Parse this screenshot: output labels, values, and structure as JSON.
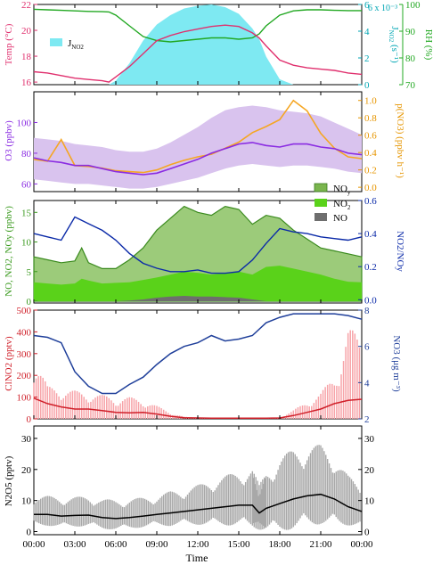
{
  "x_axis": {
    "label": "Time",
    "ticks": [
      "00:00",
      "03:00",
      "06:00",
      "09:00",
      "12:00",
      "15:00",
      "18:00",
      "21:00",
      "00:00"
    ]
  },
  "chart_data": [
    {
      "type": "line",
      "panel": "temperature-rh-jno2",
      "y_left": {
        "label": "Temp (°C)",
        "ticks": [
          "16",
          "18",
          "20",
          "22"
        ],
        "color": "#e0306e",
        "lim": [
          15.8,
          22
        ]
      },
      "y_right_inner": {
        "label": "J",
        "label_sub": "NO2",
        "label_unit": "(s⁻¹)",
        "ticks": [
          "0",
          "2",
          "4",
          "6"
        ],
        "exp": "6 x 10⁻³",
        "color": "#00a6b4",
        "lim": [
          0,
          6
        ]
      },
      "y_right_outer": {
        "label": "RH (%)",
        "ticks": [
          "70",
          "80",
          "90",
          "100"
        ],
        "color": "#22a822",
        "lim": [
          70,
          100
        ]
      },
      "legend": [
        {
          "name": "J",
          "name_sub": "NO2",
          "color": "#7ee9f2"
        }
      ],
      "hours": [
        0,
        1,
        2,
        3,
        4,
        5,
        5.5,
        6,
        7,
        8,
        9,
        10,
        11,
        12,
        13,
        14,
        15,
        16,
        16.5,
        17,
        18,
        19,
        20,
        21,
        22,
        23,
        24
      ],
      "temp": [
        16.8,
        16.7,
        16.5,
        16.3,
        16.2,
        16.1,
        16.0,
        16.4,
        17.2,
        18.2,
        19.2,
        19.6,
        19.9,
        20.1,
        20.3,
        20.4,
        20.3,
        19.8,
        19.4,
        18.8,
        17.7,
        17.3,
        17.1,
        17.0,
        16.9,
        16.7,
        16.6
      ],
      "rh": [
        98.2,
        98.0,
        97.8,
        97.6,
        97.4,
        97.3,
        97.2,
        96,
        92,
        88,
        86.5,
        86,
        86.5,
        87,
        87.5,
        87.5,
        87,
        87.5,
        89,
        92,
        96,
        97.6,
        98,
        98,
        97.8,
        97.7,
        97.7
      ],
      "jno2": [
        0,
        0,
        0,
        0,
        0,
        0,
        0,
        0.3,
        1.6,
        3.3,
        4.5,
        5.2,
        5.7,
        5.9,
        6.0,
        5.8,
        5.3,
        4.2,
        3.4,
        2.1,
        0.4,
        0,
        0,
        0,
        0,
        0,
        0
      ]
    },
    {
      "type": "area",
      "panel": "ozone",
      "y_left": {
        "label": "O3 (ppbv)",
        "ticks": [
          "60",
          "80",
          "100"
        ],
        "color": "#8a2be2",
        "lim": [
          55,
          120
        ]
      },
      "y_right": {
        "label": "p(NO3) (ppbv h⁻¹)",
        "ticks": [
          "0.0",
          "0.2",
          "0.4",
          "0.6",
          "0.8",
          "1.0"
        ],
        "color": "#e69500",
        "lim": [
          -0.05,
          1.1
        ]
      },
      "hours": [
        0,
        1,
        2,
        3,
        4,
        5,
        6,
        7,
        8,
        9,
        10,
        11,
        12,
        13,
        14,
        15,
        16,
        17,
        18,
        19,
        20,
        21,
        22,
        23,
        24
      ],
      "o3": [
        77,
        75,
        74,
        72,
        72,
        70,
        68,
        67,
        66,
        67,
        70,
        73,
        76,
        80,
        83,
        86,
        87,
        85,
        84,
        86,
        86,
        84,
        83,
        80,
        79
      ],
      "o3_low": [
        63,
        62,
        61,
        60,
        60,
        59,
        58,
        57,
        57,
        58,
        60,
        62,
        64,
        67,
        70,
        72,
        73,
        72,
        71,
        72,
        72,
        71,
        70,
        68,
        67
      ],
      "o3_high": [
        90,
        89,
        88,
        86,
        85,
        84,
        82,
        81,
        81,
        83,
        87,
        92,
        97,
        103,
        108,
        110,
        111,
        110,
        108,
        107,
        106,
        104,
        100,
        96,
        92
      ],
      "pno3": [
        0.32,
        0.3,
        0.55,
        0.25,
        0.24,
        0.22,
        0.19,
        0.18,
        0.17,
        0.2,
        0.26,
        0.31,
        0.35,
        0.38,
        0.45,
        0.52,
        0.63,
        0.7,
        0.78,
        1.0,
        0.88,
        0.62,
        0.45,
        0.35,
        0.33
      ]
    },
    {
      "type": "area",
      "panel": "nitrogen-oxides",
      "y_left": {
        "label": "NO, NO2, NOy (ppbv)",
        "ticks": [
          "0",
          "5",
          "10",
          "15"
        ],
        "color": "#3a9a1e",
        "lim": [
          -0.3,
          17
        ]
      },
      "y_right": {
        "label": "NO2/NOy",
        "ticks": [
          "0.0",
          "0.2",
          "0.4",
          "0.6"
        ],
        "color": "#0b2aa8",
        "lim": [
          -0.02,
          0.6
        ]
      },
      "legend": [
        {
          "name": "NO",
          "name_sub": "y",
          "color": "#7ab54d"
        },
        {
          "name": "NO",
          "name_sub": "2",
          "color": "#5ad21a"
        },
        {
          "name": "NO",
          "name_sub": "",
          "color": "#6e6e6e"
        }
      ],
      "hours": [
        0,
        1,
        2,
        3,
        3.5,
        4,
        5,
        6,
        7,
        8,
        9,
        10,
        11,
        12,
        13,
        14,
        15,
        16,
        17,
        18,
        19,
        20,
        21,
        22,
        23,
        24
      ],
      "noy": [
        7.5,
        7.0,
        6.5,
        6.8,
        9.0,
        6.5,
        5.5,
        5.5,
        7.0,
        9.0,
        12.0,
        14.0,
        16.0,
        15.0,
        14.5,
        16.0,
        15.5,
        13.0,
        14.5,
        14.0,
        12.0,
        10.5,
        9.0,
        8.5,
        8.0,
        7.5
      ],
      "no2": [
        3.2,
        3.0,
        2.8,
        3.0,
        3.8,
        3.5,
        3.0,
        3.1,
        3.2,
        3.6,
        4.0,
        4.5,
        5.0,
        4.8,
        4.5,
        4.8,
        5.0,
        4.5,
        5.8,
        6.0,
        5.5,
        5.0,
        4.5,
        3.8,
        3.3,
        3.2
      ],
      "no": [
        0,
        0,
        0,
        0,
        0,
        0,
        0,
        0,
        0.1,
        0.3,
        0.6,
        0.8,
        0.9,
        0.8,
        0.8,
        0.7,
        0.6,
        0.3,
        0,
        0,
        0,
        0,
        0,
        0,
        0,
        0
      ],
      "ratio": [
        0.4,
        0.38,
        0.36,
        0.5,
        0.48,
        0.46,
        0.42,
        0.36,
        0.28,
        0.22,
        0.19,
        0.17,
        0.17,
        0.18,
        0.16,
        0.16,
        0.17,
        0.24,
        0.34,
        0.43,
        0.41,
        0.4,
        0.38,
        0.37,
        0.36,
        0.38
      ]
    },
    {
      "type": "line",
      "panel": "clno2-no3",
      "y_left": {
        "label": "ClNO2 (pptv)",
        "ticks": [
          "0",
          "100",
          "200",
          "300",
          "400",
          "500"
        ],
        "color": "#d0202a",
        "lim": [
          0,
          500
        ]
      },
      "y_right": {
        "label": "NO3 (μg m⁻³)",
        "ticks": [
          "2",
          "4",
          "6",
          "8"
        ],
        "color": "#1f3f9a",
        "lim": [
          2,
          8
        ]
      },
      "hours": [
        0,
        1,
        2,
        3,
        4,
        5,
        6,
        7,
        8,
        9,
        10,
        11,
        12,
        13,
        14,
        15,
        16,
        17,
        18,
        19,
        20,
        21,
        22,
        23,
        24
      ],
      "clno2": [
        95,
        70,
        55,
        45,
        45,
        38,
        30,
        28,
        30,
        22,
        12,
        5,
        4,
        3,
        3,
        3,
        3,
        3,
        4,
        15,
        30,
        45,
        70,
        85,
        90
      ],
      "clno2_spike": [
        300,
        150,
        140,
        130,
        120,
        110,
        100,
        100,
        90,
        60,
        30,
        10,
        5,
        4,
        3,
        3,
        3,
        3,
        8,
        40,
        80,
        120,
        200,
        420,
        380
      ],
      "no3_hours": [
        0,
        1,
        2,
        3,
        4,
        5,
        6,
        7,
        8,
        9,
        10,
        11,
        12,
        13,
        14,
        15,
        16,
        17,
        18,
        19,
        20,
        21,
        22,
        23,
        24
      ],
      "no3": [
        6.6,
        6.5,
        6.2,
        4.6,
        3.8,
        3.4,
        3.4,
        3.9,
        4.3,
        5.0,
        5.6,
        6.0,
        6.2,
        6.6,
        6.3,
        6.4,
        6.6,
        7.3,
        7.6,
        7.8,
        7.8,
        7.8,
        7.8,
        7.7,
        7.5
      ]
    },
    {
      "type": "line",
      "panel": "n2o5",
      "y_left": {
        "label": "N2O5 (pptv)",
        "ticks": [
          "0",
          "10",
          "20",
          "30"
        ],
        "lim": [
          -1,
          34
        ]
      },
      "y_right": {
        "ticks": [
          "0",
          "10",
          "20",
          "30"
        ],
        "lim": [
          -1,
          34
        ]
      },
      "hours": [
        0,
        1,
        2,
        3,
        4,
        5,
        6,
        7,
        8,
        9,
        10,
        11,
        12,
        13,
        14,
        15,
        16,
        16.5,
        17,
        18,
        19,
        20,
        21,
        22,
        23,
        24
      ],
      "n2o5": [
        5.5,
        5.5,
        5.0,
        5.2,
        5.3,
        4.5,
        4.2,
        4.5,
        5.0,
        5.5,
        6.0,
        6.5,
        7.0,
        7.5,
        8.0,
        8.5,
        8.5,
        6.0,
        7.5,
        9.0,
        10.5,
        11.5,
        12.0,
        10.5,
        8.0,
        6.5
      ],
      "n2o5_spread": [
        6,
        6,
        6,
        6,
        6,
        6,
        6,
        6,
        6,
        6,
        7,
        7,
        8,
        9,
        10,
        11,
        12,
        9,
        12,
        15,
        16,
        16,
        16,
        14,
        10,
        8
      ]
    }
  ]
}
